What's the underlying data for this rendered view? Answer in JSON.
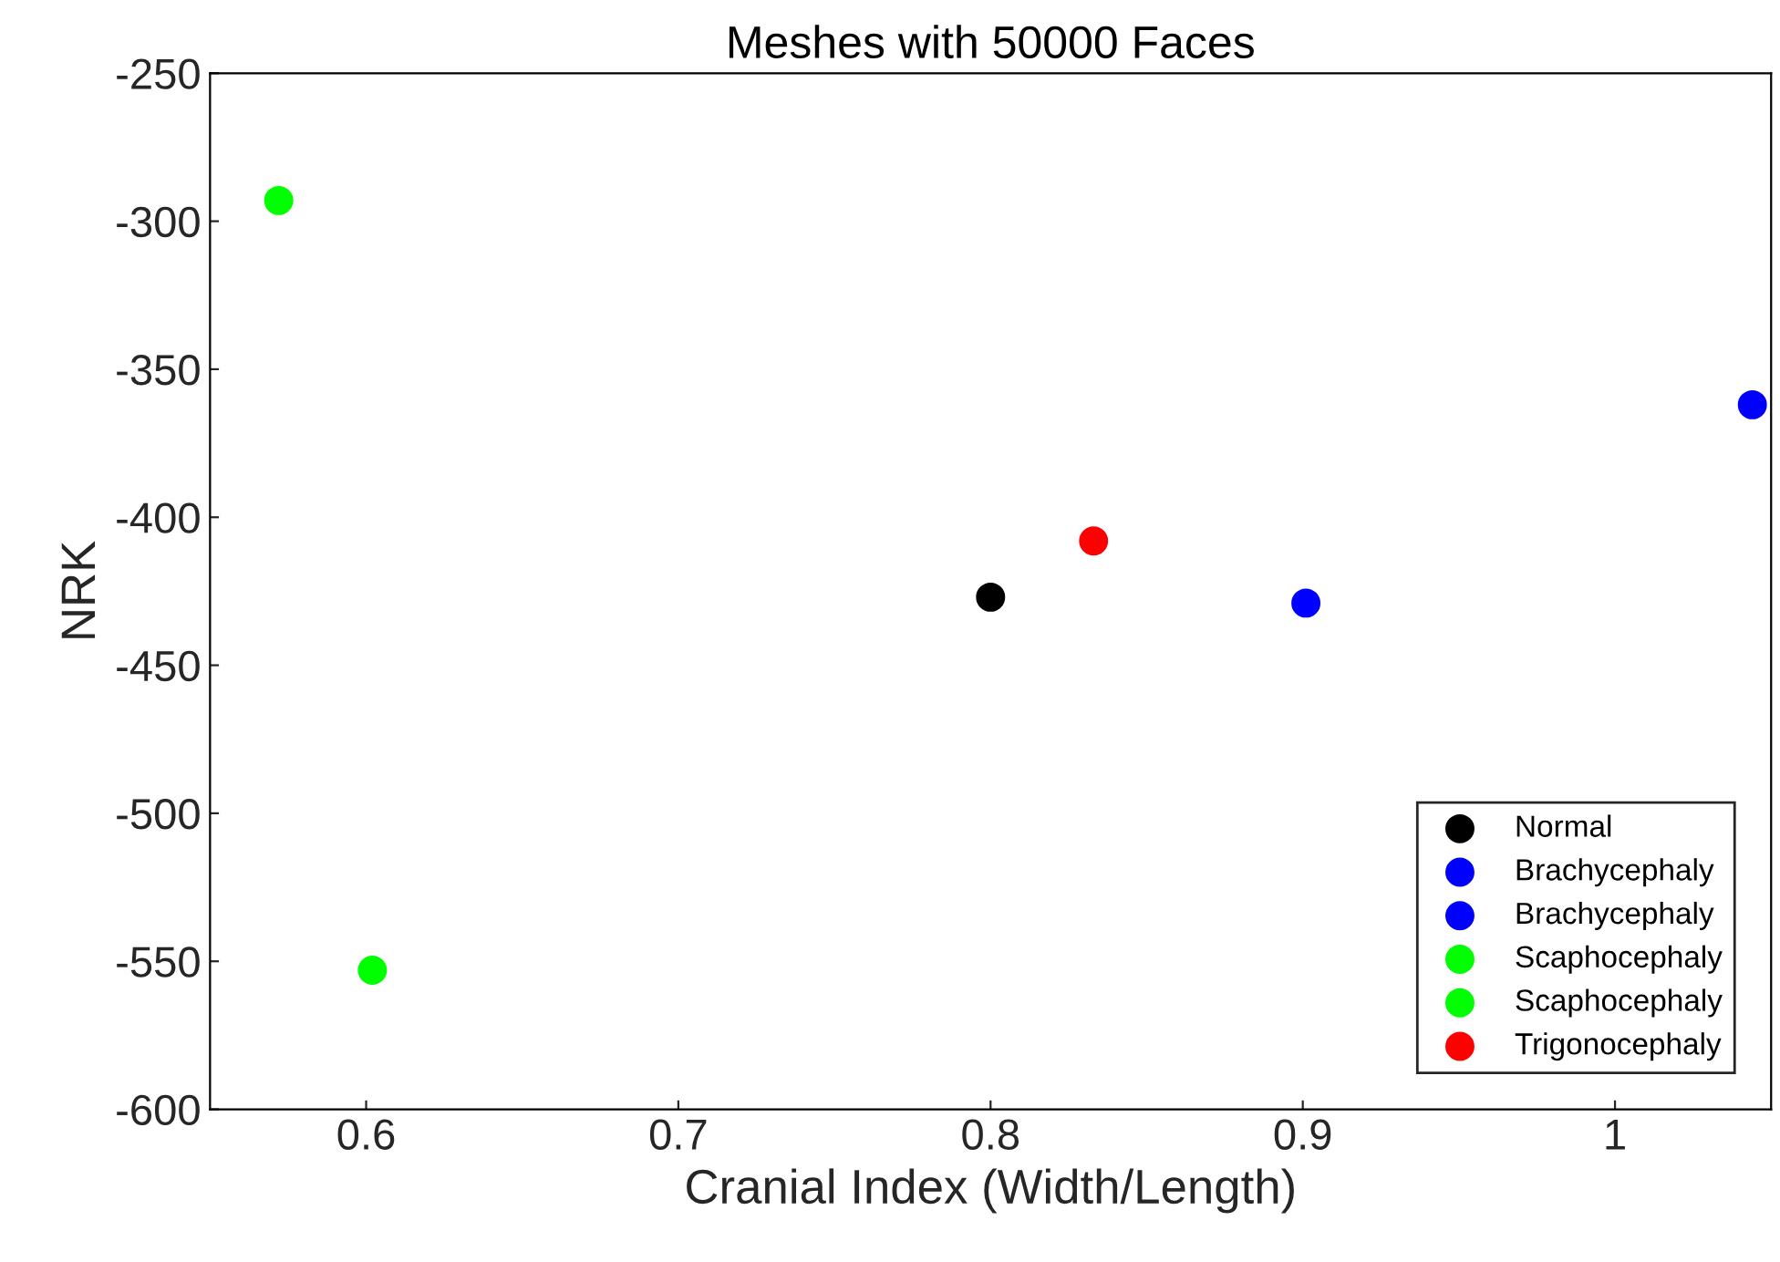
{
  "chart_data": {
    "type": "scatter",
    "title": "Meshes with 50000 Faces",
    "xlabel": "Cranial Index (Width/Length)",
    "ylabel": "NRK",
    "series": [
      {
        "name": "Normal",
        "color": "#000000",
        "x": [
          0.8
        ],
        "values": [
          -427
        ]
      },
      {
        "name": "Brachycephaly",
        "color": "#0000ff",
        "x": [
          0.901
        ],
        "values": [
          -429
        ]
      },
      {
        "name": "Brachycephaly",
        "color": "#0000ff",
        "x": [
          1.044
        ],
        "values": [
          -362
        ]
      },
      {
        "name": "Scaphocephaly",
        "color": "#00ff00",
        "x": [
          0.572
        ],
        "values": [
          -293
        ]
      },
      {
        "name": "Scaphocephaly",
        "color": "#00ff00",
        "x": [
          0.602
        ],
        "values": [
          -553
        ]
      },
      {
        "name": "Trigonocephaly",
        "color": "#ff0000",
        "x": [
          0.833
        ],
        "values": [
          -408
        ]
      }
    ],
    "xlim": [
      0.55,
      1.05
    ],
    "xticks": [
      0.6,
      0.7,
      0.8,
      0.9,
      1
    ],
    "ylim": [
      -600,
      -250
    ],
    "yticks": [
      -600,
      -550,
      -500,
      -450,
      -400,
      -350,
      -300,
      -250
    ],
    "marker": "circle",
    "legend": "bottom right",
    "grid": false
  }
}
